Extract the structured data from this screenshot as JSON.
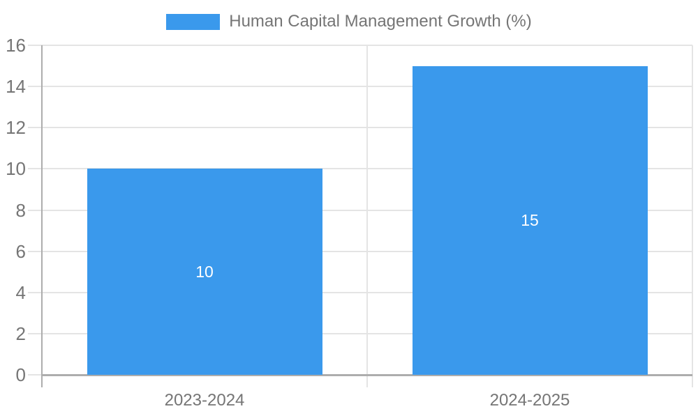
{
  "chart_data": {
    "type": "bar",
    "title": "Human Capital Management Growth (%)",
    "categories": [
      "2023-2024",
      "2024-2025"
    ],
    "series": [
      {
        "name": "Human Capital Management Growth (%)",
        "values": [
          10,
          15
        ]
      }
    ],
    "value_labels": [
      "10",
      "15"
    ],
    "xlabel": "",
    "ylabel": "",
    "ylim": [
      0,
      16
    ],
    "yticks": [
      0,
      2,
      4,
      6,
      8,
      10,
      12,
      14,
      16
    ],
    "grid": true,
    "legend_position": "top"
  },
  "colors": {
    "bar": "#3A99EC",
    "axis_line": "#adadad",
    "grid_line": "#e4e4e4",
    "text": "#757575",
    "bar_label": "#ffffff",
    "background": "#ffffff"
  }
}
